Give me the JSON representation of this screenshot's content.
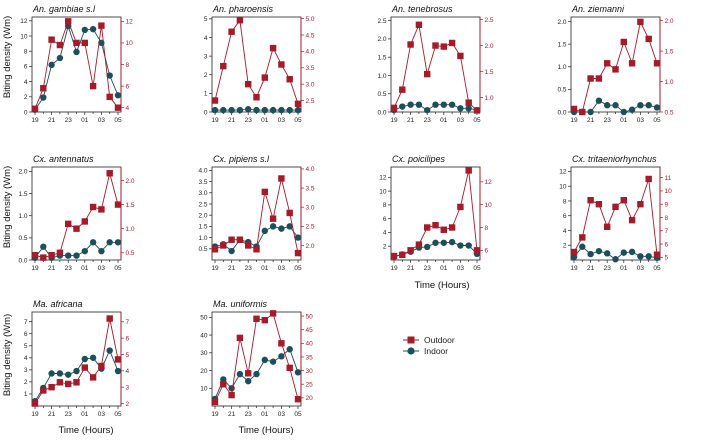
{
  "colors": {
    "outdoor": "#a51b2a",
    "indoor": "#1b4f5c",
    "axis": "#222222"
  },
  "legend": {
    "outdoor": "Outdoor",
    "indoor": "Indoor"
  },
  "labels": {
    "ylabel": "Biting density (Wm)",
    "xlabel": "Time (Hours)"
  },
  "chart_data": [
    {
      "type": "line",
      "title": "An. gambiae s.l",
      "x": [
        19,
        20,
        21,
        22,
        23,
        24,
        25,
        26,
        27,
        28,
        29
      ],
      "xticks": [
        "19",
        "21",
        "23",
        "01",
        "03",
        "05"
      ],
      "ylim": [
        0,
        12.5
      ],
      "yticks": [
        0,
        2,
        4,
        6,
        8,
        10,
        12
      ],
      "y2lim": [
        3.6,
        12.4
      ],
      "y2ticks": [
        4,
        6,
        8,
        10,
        12
      ],
      "series": [
        {
          "name": "Indoor",
          "values": [
            0.3,
            1.9,
            6.2,
            7.1,
            11.3,
            7.9,
            10.8,
            10.9,
            9.1,
            4.8,
            2.2
          ]
        },
        {
          "name": "Outdoor",
          "values": [
            3.9,
            5.8,
            10.3,
            9.8,
            12.0,
            10.0,
            10.0,
            6.0,
            11.6,
            5.0,
            4.0
          ]
        }
      ]
    },
    {
      "type": "line",
      "title": "An. pharoensis",
      "x": [
        19,
        20,
        21,
        22,
        23,
        24,
        25,
        26,
        27,
        28,
        29
      ],
      "xticks": [
        "19",
        "21",
        "23",
        "01",
        "03",
        "05"
      ],
      "ylim": [
        0,
        5.1
      ],
      "yticks": [
        0,
        1,
        2,
        3,
        4,
        5
      ],
      "y2lim": [
        2.15,
        5.05
      ],
      "y2ticks": [
        2.5,
        3.0,
        3.5,
        4.0,
        4.5,
        5.0
      ],
      "series": [
        {
          "name": "Indoor",
          "values": [
            0.1,
            0.1,
            0.1,
            0.1,
            0.15,
            0.1,
            0.1,
            0.1,
            0.1,
            0.1,
            0.1
          ]
        },
        {
          "name": "Outdoor",
          "values": [
            2.5,
            3.55,
            4.6,
            4.95,
            3.0,
            2.6,
            3.2,
            4.1,
            3.6,
            3.15,
            2.4
          ]
        }
      ]
    },
    {
      "type": "line",
      "title": "An. tenebrosus",
      "x": [
        19,
        20,
        21,
        22,
        23,
        24,
        25,
        26,
        27,
        28,
        29
      ],
      "xticks": [
        "19",
        "21",
        "23",
        "01",
        "03",
        "05"
      ],
      "ylim": [
        0,
        2.6
      ],
      "yticks": [
        0.0,
        0.5,
        1.0,
        1.5,
        2.0,
        2.5
      ],
      "y2lim": [
        0.72,
        2.55
      ],
      "y2ticks": [
        1.0,
        1.5,
        2.0,
        2.5
      ],
      "series": [
        {
          "name": "Indoor",
          "values": [
            0.05,
            0.15,
            0.2,
            0.2,
            0.05,
            0.2,
            0.2,
            0.2,
            0.1,
            0.1,
            0.05
          ]
        },
        {
          "name": "Outdoor",
          "values": [
            0.8,
            1.15,
            2.02,
            2.4,
            1.45,
            2.0,
            1.98,
            2.05,
            1.8,
            0.9,
            0.75
          ]
        }
      ]
    },
    {
      "type": "line",
      "title": "An. ziemanni",
      "x": [
        19,
        20,
        21,
        22,
        23,
        24,
        25,
        26,
        27,
        28,
        29
      ],
      "xticks": [
        "19",
        "21",
        "23",
        "01",
        "03",
        "05"
      ],
      "ylim": [
        0,
        2.1
      ],
      "yticks": [
        0.0,
        0.5,
        1.0,
        1.5,
        2.0
      ],
      "y2lim": [
        0.5,
        2.06
      ],
      "y2ticks": [
        0.5,
        1.0,
        1.5,
        2.0
      ],
      "series": [
        {
          "name": "Indoor",
          "values": [
            0.0,
            0.0,
            0.0,
            0.25,
            0.15,
            0.15,
            0.0,
            0.05,
            0.15,
            0.15,
            0.1
          ]
        },
        {
          "name": "Outdoor",
          "values": [
            0.55,
            0.5,
            1.05,
            1.05,
            1.3,
            1.2,
            1.65,
            1.3,
            1.98,
            1.7,
            1.3
          ]
        }
      ]
    },
    {
      "type": "line",
      "title": "Cx. antennatus",
      "x": [
        19,
        20,
        21,
        22,
        23,
        24,
        25,
        26,
        27,
        28,
        29
      ],
      "xticks": [
        "19",
        "21",
        "23",
        "01",
        "03",
        "05"
      ],
      "ylim": [
        0,
        2.1
      ],
      "yticks": [
        0.0,
        0.5,
        1.0,
        1.5,
        2.0
      ],
      "y2lim": [
        0.35,
        2.28
      ],
      "y2ticks": [
        0.5,
        1.0,
        1.5,
        2.0
      ],
      "series": [
        {
          "name": "Indoor",
          "values": [
            0.05,
            0.3,
            0.05,
            0.1,
            0.1,
            0.1,
            0.2,
            0.4,
            0.2,
            0.4,
            0.4
          ]
        },
        {
          "name": "Outdoor",
          "values": [
            0.45,
            0.4,
            0.45,
            0.5,
            1.1,
            1.0,
            1.15,
            1.45,
            1.4,
            2.15,
            1.5
          ]
        }
      ]
    },
    {
      "type": "line",
      "title": "Cx. pipiens s.l",
      "x": [
        19,
        20,
        21,
        22,
        23,
        24,
        25,
        26,
        27,
        28,
        29
      ],
      "xticks": [
        "19",
        "21",
        "23",
        "01",
        "03",
        "05"
      ],
      "ylim": [
        0,
        4.15
      ],
      "yticks": [
        0.5,
        1.0,
        1.5,
        2.0,
        2.5,
        3.0,
        3.5,
        4.0
      ],
      "y2lim": [
        1.62,
        4.05
      ],
      "y2ticks": [
        2.0,
        2.5,
        3.0,
        3.5,
        4.0
      ],
      "series": [
        {
          "name": "Indoor",
          "values": [
            0.6,
            0.7,
            0.4,
            0.9,
            0.8,
            0.6,
            1.3,
            1.5,
            1.4,
            1.5,
            1.0
          ]
        },
        {
          "name": "Outdoor",
          "values": [
            1.9,
            2.0,
            2.15,
            2.15,
            2.0,
            1.9,
            3.4,
            2.7,
            3.75,
            2.85,
            1.8
          ]
        }
      ]
    },
    {
      "type": "line",
      "title": "Cx. poicilipes",
      "x": [
        19,
        20,
        21,
        22,
        23,
        24,
        25,
        26,
        27,
        28,
        29
      ],
      "xticks": [
        "19",
        "21",
        "23",
        "01",
        "03",
        "05"
      ],
      "ylim": [
        0,
        13.5
      ],
      "yticks": [
        2,
        4,
        6,
        8,
        10,
        12
      ],
      "y2lim": [
        5.15,
        13.3
      ],
      "y2ticks": [
        6,
        8,
        10,
        12
      ],
      "series": [
        {
          "name": "Indoor",
          "values": [
            0.5,
            0.8,
            1.2,
            1.8,
            1.9,
            2.5,
            2.5,
            2.6,
            2.1,
            2.1,
            0.9
          ]
        },
        {
          "name": "Outdoor",
          "values": [
            5.5,
            5.6,
            6.0,
            6.5,
            8.0,
            8.2,
            7.8,
            8.0,
            9.8,
            13.0,
            6.0
          ]
        }
      ]
    },
    {
      "type": "line",
      "title": "Cx. tritaeniorhynchus",
      "x": [
        19,
        20,
        21,
        22,
        23,
        24,
        25,
        26,
        27,
        28,
        29
      ],
      "xticks": [
        "19",
        "21",
        "23",
        "01",
        "03",
        "05"
      ],
      "ylim": [
        0,
        12.6
      ],
      "yticks": [
        2,
        4,
        6,
        8,
        10,
        12
      ],
      "y2lim": [
        4.8,
        11.8
      ],
      "y2ticks": [
        5,
        6,
        7,
        8,
        9,
        10,
        11
      ],
      "series": [
        {
          "name": "Indoor",
          "values": [
            0.4,
            1.8,
            0.8,
            1.2,
            0.9,
            0.1,
            1.0,
            1.1,
            0.5,
            0.5,
            0.3
          ]
        },
        {
          "name": "Outdoor",
          "values": [
            5.4,
            6.5,
            9.3,
            9.0,
            7.3,
            8.8,
            9.3,
            7.8,
            9.0,
            10.9,
            5.2
          ]
        }
      ]
    },
    {
      "type": "line",
      "title": "Ma. africana",
      "x": [
        19,
        20,
        21,
        22,
        23,
        24,
        25,
        26,
        27,
        28,
        29
      ],
      "xticks": [
        "19",
        "21",
        "23",
        "01",
        "03",
        "05"
      ],
      "ylim": [
        0,
        7.8
      ],
      "yticks": [
        1,
        2,
        3,
        4,
        5,
        6,
        7
      ],
      "y2lim": [
        1.85,
        7.6
      ],
      "y2ticks": [
        2,
        3,
        4,
        5,
        6,
        7
      ],
      "series": [
        {
          "name": "Indoor",
          "values": [
            0.4,
            1.5,
            2.7,
            2.7,
            2.6,
            2.9,
            3.9,
            4.0,
            3.1,
            4.6,
            2.9
          ]
        },
        {
          "name": "Outdoor",
          "values": [
            2.0,
            2.8,
            3.0,
            3.3,
            3.2,
            3.3,
            4.2,
            3.6,
            4.3,
            7.2,
            4.7
          ]
        }
      ]
    },
    {
      "type": "line",
      "title": "Ma. uniformis",
      "x": [
        19,
        20,
        21,
        22,
        23,
        24,
        25,
        26,
        27,
        28,
        29
      ],
      "xticks": [
        "19",
        "21",
        "23",
        "01",
        "03",
        "05"
      ],
      "ylim": [
        0,
        53
      ],
      "yticks": [
        10,
        20,
        30,
        40,
        50
      ],
      "y2lim": [
        17.0,
        51.5
      ],
      "y2ticks": [
        20,
        25,
        30,
        35,
        40,
        45,
        50
      ],
      "series": [
        {
          "name": "Indoor",
          "values": [
            4.0,
            15.0,
            10.0,
            18.0,
            14.0,
            18.0,
            26.0,
            25.0,
            28.0,
            32.0,
            19.0
          ]
        },
        {
          "name": "Outdoor",
          "values": [
            18.5,
            25.0,
            21.0,
            42.0,
            29.0,
            49.0,
            48.5,
            51.0,
            40.0,
            31.0,
            19.5
          ]
        }
      ]
    }
  ]
}
